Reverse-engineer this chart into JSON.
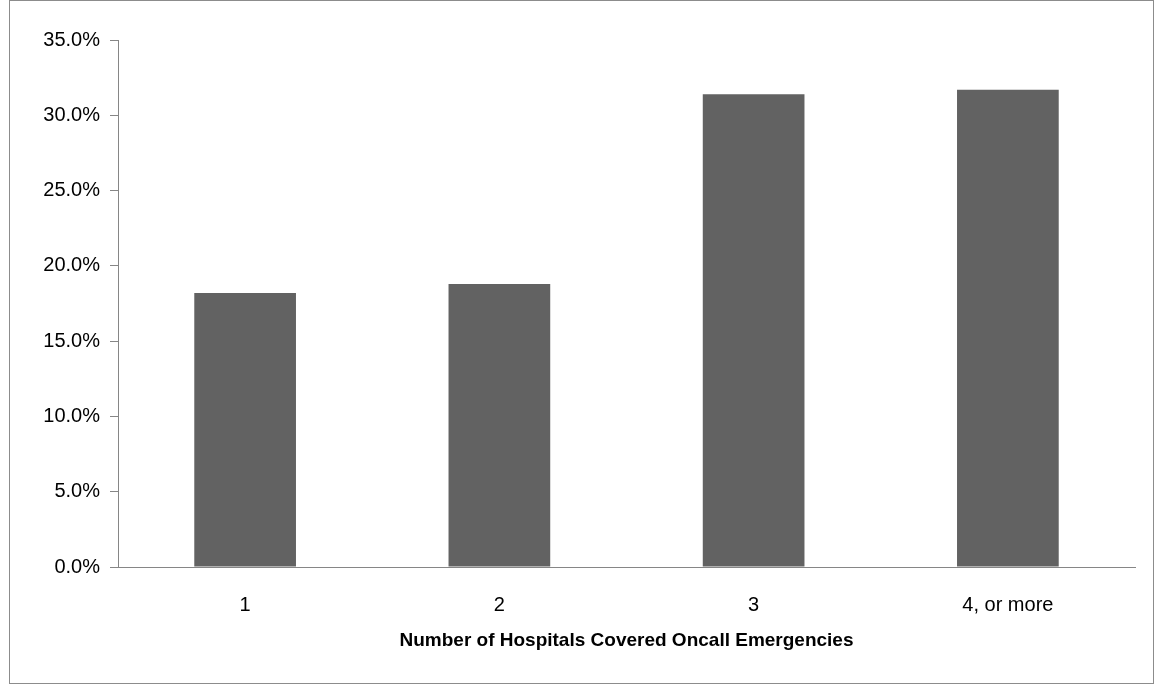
{
  "chart_data": {
    "type": "bar",
    "xlabel": "Number of Hospitals Covered Oncall Emergencies",
    "categories": [
      "1",
      "2",
      "3",
      "4, or more"
    ],
    "values": [
      18.2,
      18.8,
      31.4,
      31.7
    ],
    "color": "#626262",
    "ylim": [
      0,
      35
    ],
    "yticks": [
      {
        "value": 0,
        "label": "0.0%"
      },
      {
        "value": 5,
        "label": "5.0%"
      },
      {
        "value": 10,
        "label": "10.0%"
      },
      {
        "value": 15,
        "label": "15.0%"
      },
      {
        "value": 20,
        "label": "20.0%"
      },
      {
        "value": 25,
        "label": "25.0%"
      },
      {
        "value": 30,
        "label": "30.0%"
      },
      {
        "value": 35,
        "label": "35.0%"
      }
    ]
  }
}
